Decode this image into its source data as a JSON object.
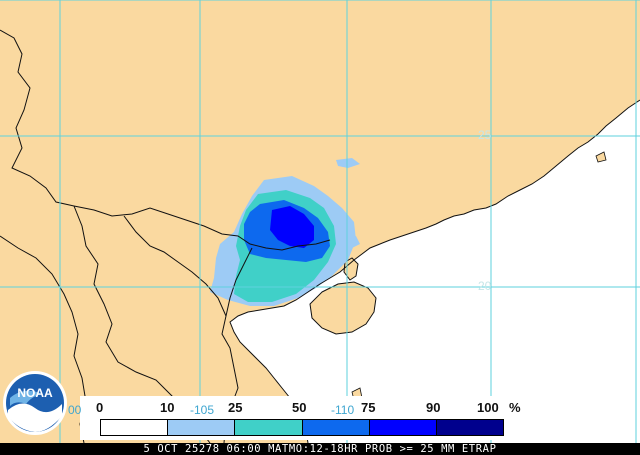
{
  "map": {
    "colors": {
      "land": "#fad9a0",
      "sea": "#ffffff",
      "grid": "#5ed2de",
      "borders": "#111111"
    },
    "lat_labels": [
      "25",
      "20"
    ],
    "lon_labels": [
      "-105",
      "-110",
      "00"
    ]
  },
  "legend": {
    "ticks": [
      "0",
      "10",
      "25",
      "50",
      "75",
      "90",
      "100"
    ],
    "unit": "%",
    "colors": [
      "#ffffff",
      "#9dcbf5",
      "#40d0c8",
      "#0d69ee",
      "#0000ff",
      "#00008d"
    ]
  },
  "caption": "5 OCT 25278 06:00 MATMO:12-18HR PROB >= 25 MM ETRAP",
  "logo": {
    "text": "NOAA",
    "icon": "noaa-logo-icon"
  }
}
